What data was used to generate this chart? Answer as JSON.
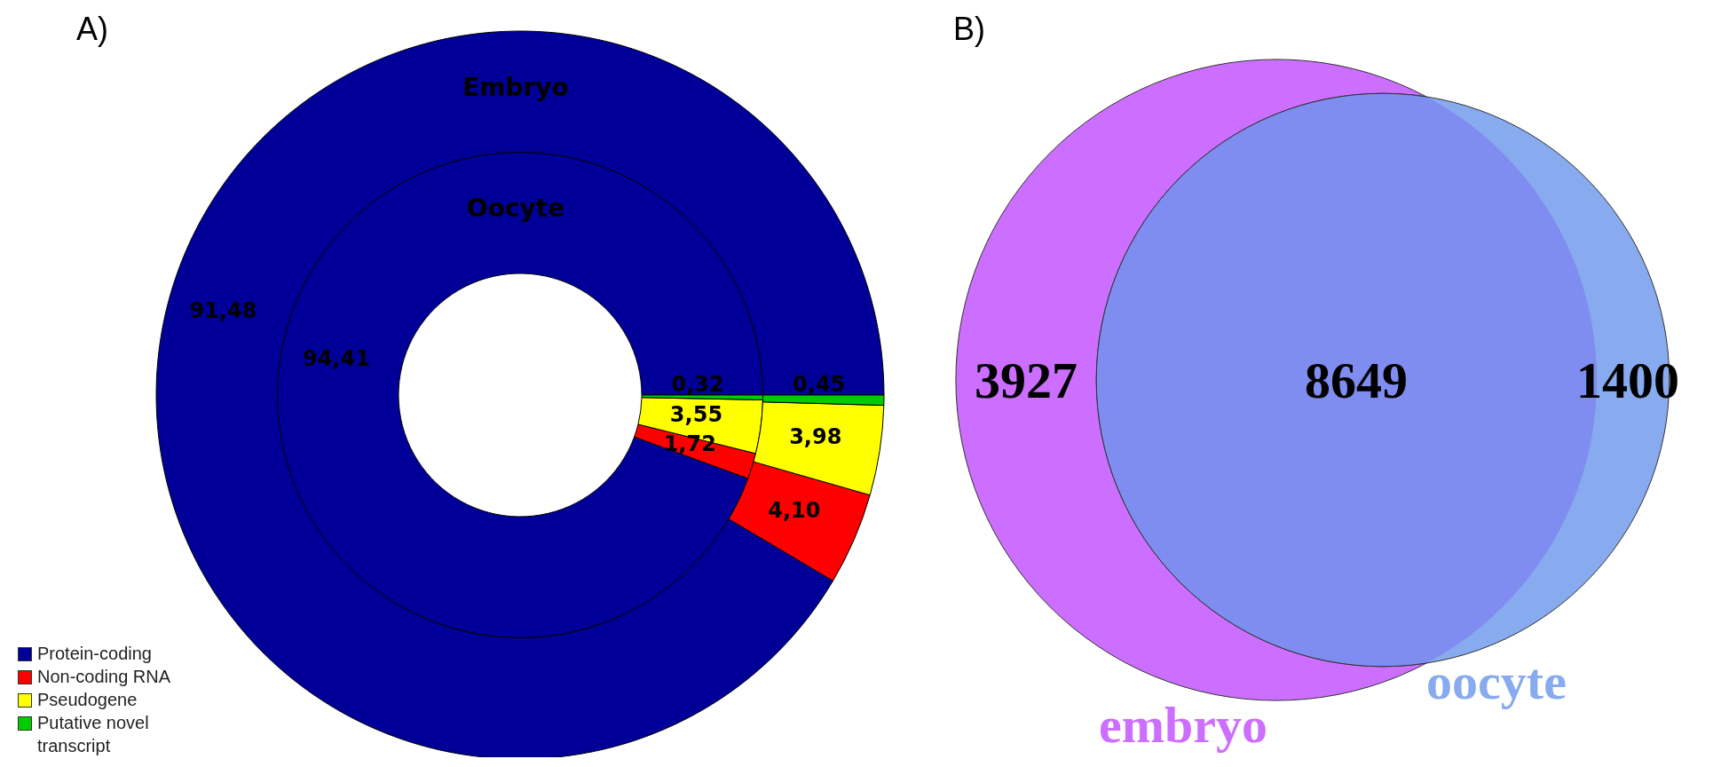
{
  "chart_data": [
    {
      "type": "donut",
      "title": "A)",
      "categories": [
        "Protein-coding",
        "Non-coding RNA",
        "Pseudogene",
        "Putative novel transcript"
      ],
      "colors": [
        "#000099",
        "#ff0000",
        "#ffff00",
        "#00cc00"
      ],
      "legend": "bottom left",
      "series": [
        {
          "name": "Oocyte",
          "values": [
            94.41,
            1.72,
            3.55,
            0.32
          ],
          "value_labels": [
            "94,41",
            "1,72",
            "3,55",
            "0,32"
          ]
        },
        {
          "name": "Embryo",
          "values": [
            91.48,
            4.1,
            3.98,
            0.45
          ],
          "value_labels": [
            "91,48",
            "4,10",
            "3,98",
            "0,45"
          ]
        }
      ]
    },
    {
      "type": "other",
      "title": "B)",
      "data_labels": true,
      "categories": [
        "embryo",
        null,
        "oocyte"
      ],
      "values": [
        3927,
        8649,
        1400
      ],
      "colors": [
        "#cc6eff",
        "#7f8cf0",
        "#88aaee"
      ]
    }
  ]
}
